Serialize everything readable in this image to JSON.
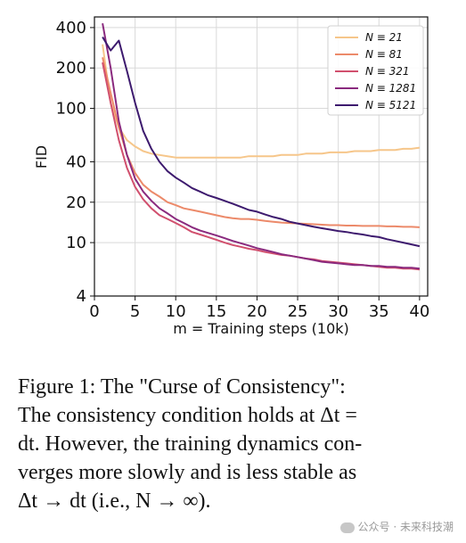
{
  "chart_data": {
    "type": "line",
    "xlabel": "m = Training steps (10k)",
    "ylabel": "FID",
    "xlim": [
      0,
      41
    ],
    "ylim": [
      4,
      480
    ],
    "yscale": "log",
    "grid": true,
    "legend_position": "top-right",
    "x_ticks": [
      0,
      5,
      10,
      15,
      20,
      25,
      30,
      35,
      40
    ],
    "y_ticks": [
      4,
      10,
      20,
      40,
      100,
      200,
      400
    ],
    "x": [
      1,
      2,
      3,
      4,
      5,
      6,
      7,
      8,
      9,
      10,
      11,
      12,
      13,
      14,
      15,
      16,
      17,
      18,
      19,
      20,
      21,
      22,
      23,
      24,
      25,
      26,
      27,
      28,
      29,
      30,
      31,
      32,
      33,
      34,
      35,
      36,
      37,
      38,
      39,
      40
    ],
    "series": [
      {
        "name": "N ≡ 21",
        "color": "#f6c68a",
        "values": [
          300,
          110,
          72,
          58,
          52,
          48,
          46,
          45,
          44,
          43,
          43,
          43,
          43,
          43,
          43,
          43,
          43,
          43,
          44,
          44,
          44,
          44,
          45,
          45,
          45,
          46,
          46,
          46,
          47,
          47,
          47,
          48,
          48,
          48,
          49,
          49,
          49,
          50,
          50,
          51
        ]
      },
      {
        "name": "N ≡ 81",
        "color": "#ec8a6a",
        "values": [
          240,
          130,
          72,
          45,
          33,
          27,
          24,
          22,
          20,
          19,
          18,
          17.5,
          17,
          16.5,
          16,
          15.5,
          15.2,
          15,
          15,
          14.8,
          14.5,
          14.3,
          14.1,
          14,
          13.9,
          13.8,
          13.7,
          13.6,
          13.5,
          13.5,
          13.4,
          13.4,
          13.3,
          13.3,
          13.3,
          13.2,
          13.2,
          13.1,
          13.1,
          13.0
        ]
      },
      {
        "name": "N ≡ 321",
        "color": "#d1506e",
        "values": [
          220,
          110,
          58,
          36,
          26,
          21,
          18,
          16,
          15,
          14,
          13,
          12,
          11.5,
          11,
          10.5,
          10,
          9.6,
          9.3,
          9,
          8.8,
          8.5,
          8.3,
          8.1,
          8,
          7.8,
          7.6,
          7.5,
          7.3,
          7.2,
          7.1,
          7,
          6.9,
          6.8,
          6.7,
          6.6,
          6.5,
          6.5,
          6.4,
          6.4,
          6.3
        ]
      },
      {
        "name": "N ≡ 1281",
        "color": "#8a2a7e",
        "values": [
          430,
          200,
          80,
          45,
          30,
          24,
          20.5,
          18,
          16.5,
          15,
          14,
          13,
          12.3,
          11.8,
          11.3,
          10.8,
          10.3,
          9.9,
          9.5,
          9.1,
          8.8,
          8.5,
          8.2,
          8,
          7.8,
          7.6,
          7.4,
          7.2,
          7.1,
          7,
          6.9,
          6.8,
          6.8,
          6.7,
          6.7,
          6.6,
          6.6,
          6.5,
          6.5,
          6.4
        ]
      },
      {
        "name": "N ≡ 5121",
        "color": "#3d1a6e",
        "values": [
          340,
          270,
          320,
          190,
          110,
          68,
          50,
          40,
          34,
          30.5,
          28,
          25.5,
          24,
          22.5,
          21.5,
          20.5,
          19.5,
          18.5,
          17.5,
          17,
          16.2,
          15.5,
          15,
          14.3,
          13.9,
          13.5,
          13.1,
          12.8,
          12.5,
          12.2,
          12,
          11.7,
          11.5,
          11.2,
          11,
          10.6,
          10.3,
          10,
          9.7,
          9.4
        ]
      }
    ]
  },
  "caption": {
    "line1": "Figure 1: The \"Curse of Consistency\":",
    "line2": "The consistency condition holds at Δt =",
    "line3": "dt. However, the training dynamics con-",
    "line4": "verges more slowly and is less stable as",
    "line5": "Δt → dt (i.e., N → ∞)."
  },
  "watermark": "公众号 · 未来科技潮"
}
